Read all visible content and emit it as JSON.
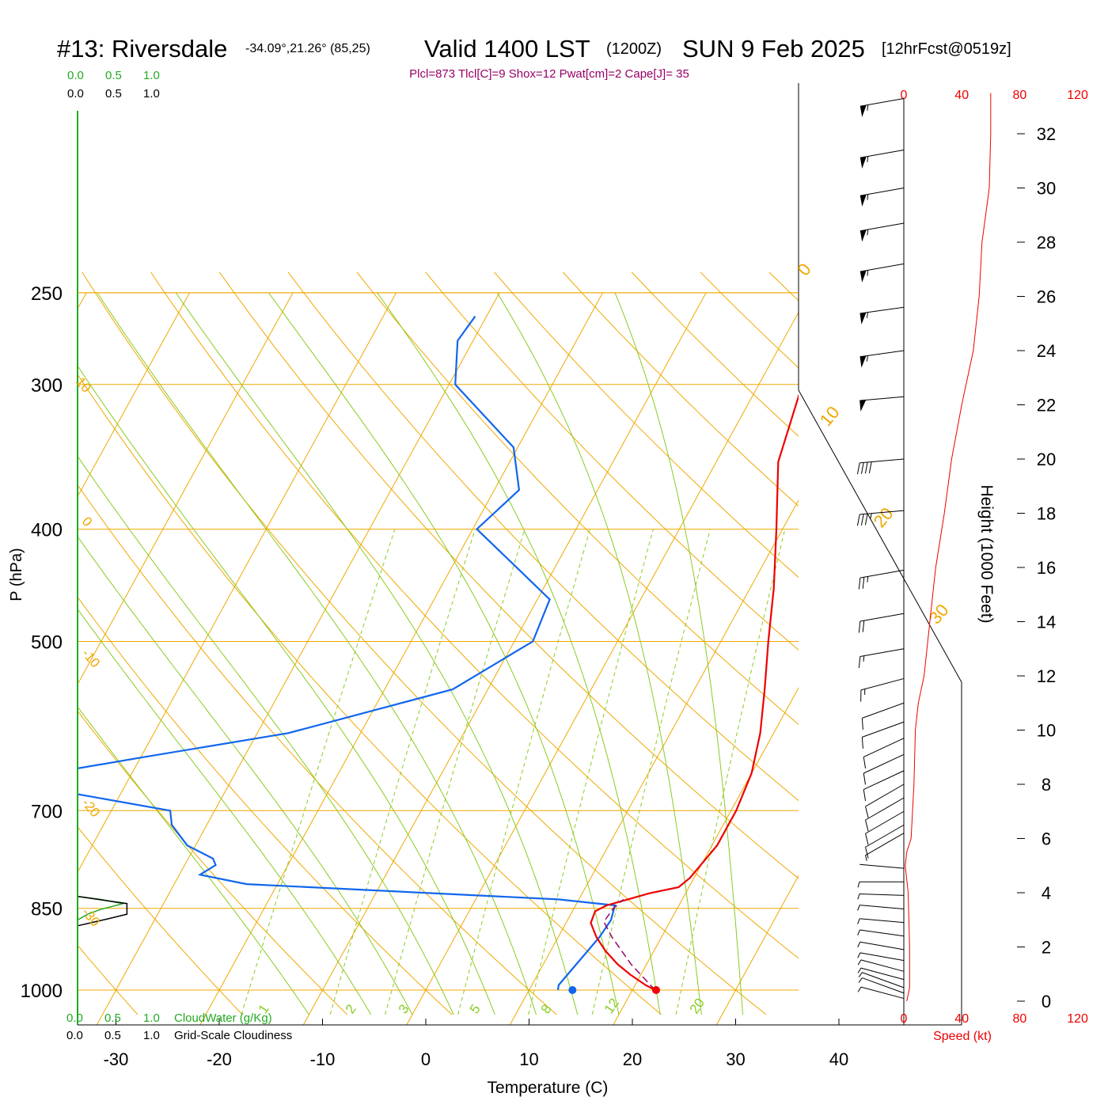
{
  "header": {
    "station": "#13: Riversdale",
    "coords": "-34.09°,21.26° (85,25)",
    "valid": "Valid 1400 LST",
    "zulu": "(1200Z)",
    "date": "SUN 9 Feb 2025",
    "forecast": "[12hrFcst@0519z]",
    "indices": "Plcl=873 Tlcl[C]=9 Shox=12 Pwat[cm]=2 Cape[J]= 35"
  },
  "colors": {
    "isotherm": "#f0a800",
    "mixing_ratio": "#88cc22",
    "temperature": "#ee0000",
    "dewpoint": "#1166ee",
    "parcel": "#990066",
    "cloud_water": "#22aa22",
    "cloudiness": "#000000",
    "wind_speed": "#ee0000"
  },
  "cloud_scale": {
    "cw_ticks": [
      "0.0",
      "0.5",
      "1.0"
    ],
    "gsc_ticks": [
      "0.0",
      "0.5",
      "1.0"
    ],
    "cw_label": "CloudWater (g/Kg)",
    "gsc_label": "Grid-Scale Cloudiness"
  },
  "chart_data": {
    "type": "skew-t",
    "xlabel": "Temperature (C)",
    "ylabel": "P (hPa)",
    "x_ticks": [
      -30,
      -20,
      -10,
      0,
      10,
      20,
      30,
      40
    ],
    "y_ticks": [
      250,
      300,
      400,
      500,
      700,
      850,
      1000
    ],
    "isotherm_labels": [
      10,
      0,
      -10,
      -20,
      -30
    ],
    "isotherm_labels_right": [
      0,
      10,
      20,
      30
    ],
    "mixing_ratio_labels": [
      "1",
      "2",
      "3",
      "5",
      "8",
      "12",
      "20"
    ],
    "temperature_profile": [
      {
        "p": 1000,
        "t": 22.2
      },
      {
        "p": 990,
        "t": 21.0
      },
      {
        "p": 970,
        "t": 19.0
      },
      {
        "p": 950,
        "t": 17.2
      },
      {
        "p": 925,
        "t": 15.3
      },
      {
        "p": 900,
        "t": 13.7
      },
      {
        "p": 875,
        "t": 12.4
      },
      {
        "p": 855,
        "t": 12.2
      },
      {
        "p": 845,
        "t": 13.0
      },
      {
        "p": 825,
        "t": 16.5
      },
      {
        "p": 815,
        "t": 19.0
      },
      {
        "p": 800,
        "t": 19.6
      },
      {
        "p": 750,
        "t": 20.5
      },
      {
        "p": 700,
        "t": 20.5
      },
      {
        "p": 650,
        "t": 20.0
      },
      {
        "p": 600,
        "t": 18.7
      },
      {
        "p": 550,
        "t": 16.8
      },
      {
        "p": 500,
        "t": 14.6
      },
      {
        "p": 450,
        "t": 12.3
      },
      {
        "p": 400,
        "t": 9.4
      },
      {
        "p": 350,
        "t": 6.0
      },
      {
        "p": 300,
        "t": 4.2
      },
      {
        "p": 262,
        "t": 1.8
      }
    ],
    "dewpoint_profile": [
      {
        "p": 1000,
        "t": 12.8
      },
      {
        "p": 990,
        "t": 12.6
      },
      {
        "p": 950,
        "t": 13.2
      },
      {
        "p": 900,
        "t": 14.0
      },
      {
        "p": 870,
        "t": 14.2
      },
      {
        "p": 845,
        "t": 13.8
      },
      {
        "p": 835,
        "t": 8.0
      },
      {
        "p": 810,
        "t": -23.0
      },
      {
        "p": 795,
        "t": -28.0
      },
      {
        "p": 780,
        "t": -27.0
      },
      {
        "p": 770,
        "t": -27.6
      },
      {
        "p": 750,
        "t": -30.8
      },
      {
        "p": 720,
        "t": -33.4
      },
      {
        "p": 700,
        "t": -34.3
      },
      {
        "p": 660,
        "t": -52.0
      },
      {
        "p": 630,
        "t": -40.0
      },
      {
        "p": 600,
        "t": -27.0
      },
      {
        "p": 550,
        "t": -13.4
      },
      {
        "p": 500,
        "t": -8.2
      },
      {
        "p": 460,
        "t": -8.8
      },
      {
        "p": 430,
        "t": -14.0
      },
      {
        "p": 400,
        "t": -19.6
      },
      {
        "p": 370,
        "t": -17.6
      },
      {
        "p": 340,
        "t": -20.4
      },
      {
        "p": 300,
        "t": -29.4
      },
      {
        "p": 275,
        "t": -31.5
      },
      {
        "p": 262,
        "t": -31.1
      }
    ],
    "parcel_profile": [
      {
        "p": 1000,
        "t": 22.2
      },
      {
        "p": 950,
        "t": 18.5
      },
      {
        "p": 900,
        "t": 15.2
      },
      {
        "p": 873,
        "t": 13.6
      },
      {
        "p": 850,
        "t": 13.8
      },
      {
        "p": 835,
        "t": 14.3
      }
    ],
    "surface": {
      "temp": 22.3,
      "dewpoint": 14.2
    },
    "cloud_water": [
      {
        "p": 830,
        "v": 0.0
      },
      {
        "p": 835,
        "v": 0.45
      },
      {
        "p": 842,
        "v": 0.9
      },
      {
        "p": 852,
        "v": 0.45
      },
      {
        "p": 860,
        "v": 0.2
      },
      {
        "p": 870,
        "v": 0.0
      }
    ],
    "cloudiness": [
      {
        "p": 830,
        "v": 0.0
      },
      {
        "p": 842,
        "v": 1.3
      },
      {
        "p": 860,
        "v": 1.3
      },
      {
        "p": 868,
        "v": 0.8
      },
      {
        "p": 880,
        "v": 0.0
      }
    ],
    "height_axis": {
      "label": "Height (1000 Feet)",
      "ticks": [
        0,
        2,
        4,
        6,
        8,
        10,
        12,
        14,
        16,
        18,
        20,
        22,
        24,
        26,
        28,
        30,
        32
      ]
    },
    "wind_speed_axis": {
      "label": "Speed (kt)",
      "ticks": [
        0,
        40,
        80,
        120
      ]
    },
    "wind_speed_profile": [
      {
        "h": 0,
        "s": 2
      },
      {
        "h": 0.5,
        "s": 4
      },
      {
        "h": 2,
        "s": 4
      },
      {
        "h": 4,
        "s": 3
      },
      {
        "h": 5,
        "s": 1
      },
      {
        "h": 5.5,
        "s": 2
      },
      {
        "h": 6,
        "s": 5
      },
      {
        "h": 7,
        "s": 6
      },
      {
        "h": 8,
        "s": 7
      },
      {
        "h": 10,
        "s": 8
      },
      {
        "h": 11,
        "s": 10
      },
      {
        "h": 12,
        "s": 14
      },
      {
        "h": 14,
        "s": 18
      },
      {
        "h": 16,
        "s": 22
      },
      {
        "h": 18,
        "s": 28
      },
      {
        "h": 20,
        "s": 33
      },
      {
        "h": 22,
        "s": 40
      },
      {
        "h": 24,
        "s": 48
      },
      {
        "h": 26,
        "s": 52
      },
      {
        "h": 28,
        "s": 54
      },
      {
        "h": 30,
        "s": 59
      },
      {
        "h": 32,
        "s": 60
      },
      {
        "h": 33.5,
        "s": 60
      }
    ],
    "wind_barbs": [
      {
        "h": 0.1,
        "dir": 255,
        "s": 3
      },
      {
        "h": 0.3,
        "dir": 250,
        "s": 4
      },
      {
        "h": 0.5,
        "dir": 250,
        "s": 4
      },
      {
        "h": 0.8,
        "dir": 255,
        "s": 4
      },
      {
        "h": 1.1,
        "dir": 255,
        "s": 4
      },
      {
        "h": 1.5,
        "dir": 260,
        "s": 4
      },
      {
        "h": 1.9,
        "dir": 260,
        "s": 4
      },
      {
        "h": 2.4,
        "dir": 262,
        "s": 4
      },
      {
        "h": 2.9,
        "dir": 265,
        "s": 4
      },
      {
        "h": 3.4,
        "dir": 265,
        "s": 3
      },
      {
        "h": 3.9,
        "dir": 268,
        "s": 3
      },
      {
        "h": 4.4,
        "dir": 270,
        "s": 3
      },
      {
        "h": 4.9,
        "dir": 265,
        "s": 2
      },
      {
        "h": 6.2,
        "dir": 300,
        "s": 7
      },
      {
        "h": 6.5,
        "dir": 300,
        "s": 8
      },
      {
        "h": 7.0,
        "dir": 300,
        "s": 10
      },
      {
        "h": 7.5,
        "dir": 300,
        "s": 10
      },
      {
        "h": 8.0,
        "dir": 300,
        "s": 10
      },
      {
        "h": 8.5,
        "dir": 295,
        "s": 10
      },
      {
        "h": 9.1,
        "dir": 295,
        "s": 10
      },
      {
        "h": 9.7,
        "dir": 295,
        "s": 10
      },
      {
        "h": 10.3,
        "dir": 290,
        "s": 10
      },
      {
        "h": 11.0,
        "dir": 290,
        "s": 12
      },
      {
        "h": 11.9,
        "dir": 285,
        "s": 14
      },
      {
        "h": 13.0,
        "dir": 280,
        "s": 15
      },
      {
        "h": 14.3,
        "dir": 280,
        "s": 20
      },
      {
        "h": 15.9,
        "dir": 280,
        "s": 25
      },
      {
        "h": 18.1,
        "dir": 275,
        "s": 35
      },
      {
        "h": 20.0,
        "dir": 275,
        "s": 40
      },
      {
        "h": 22.3,
        "dir": 275,
        "s": 50
      },
      {
        "h": 24.0,
        "dir": 278,
        "s": 55
      },
      {
        "h": 25.6,
        "dir": 278,
        "s": 55
      },
      {
        "h": 27.2,
        "dir": 280,
        "s": 55
      },
      {
        "h": 28.7,
        "dir": 280,
        "s": 55
      },
      {
        "h": 30.0,
        "dir": 280,
        "s": 55
      },
      {
        "h": 31.4,
        "dir": 280,
        "s": 55
      },
      {
        "h": 33.3,
        "dir": 280,
        "s": 55
      }
    ]
  }
}
